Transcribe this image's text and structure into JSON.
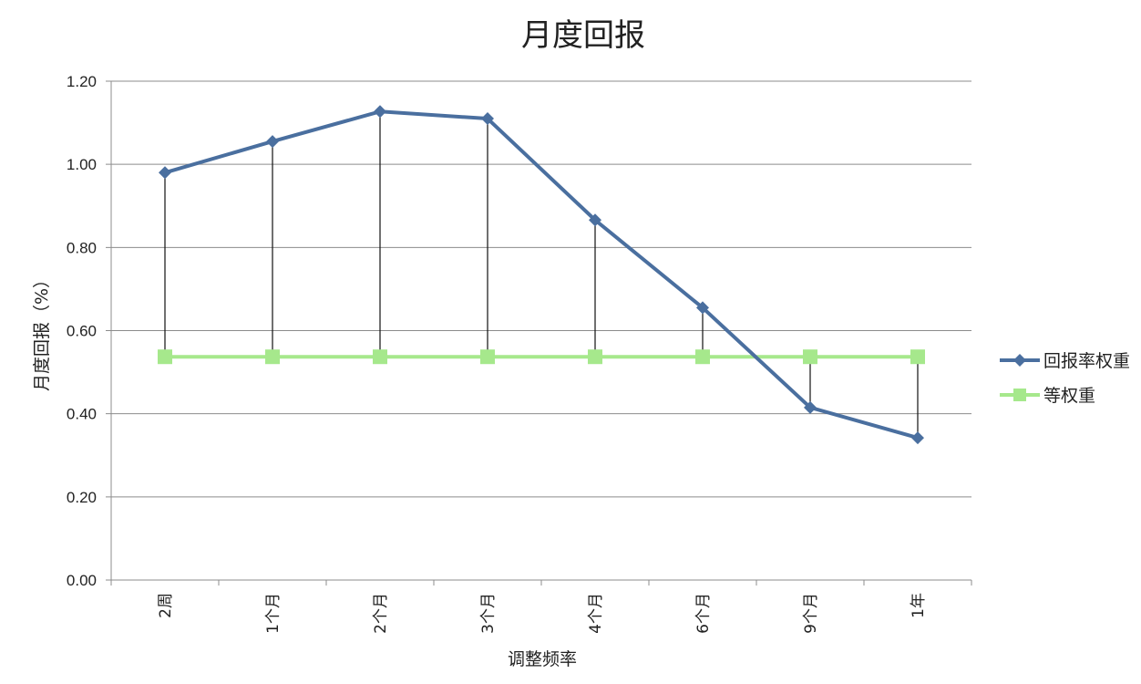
{
  "chart_data": {
    "type": "line",
    "title": "月度回报",
    "xlabel": "调整频率",
    "ylabel": "月度回报（%）",
    "categories": [
      "2周",
      "1个月",
      "2个月",
      "3个月",
      "4个月",
      "6个月",
      "9个月",
      "1年"
    ],
    "ylim": [
      0,
      1.2
    ],
    "yticks": [
      "0.00",
      "0.20",
      "0.40",
      "0.60",
      "0.80",
      "1.00",
      "1.20"
    ],
    "grid": true,
    "legend_position": "right",
    "drop_lines": true,
    "series": [
      {
        "name": "回报率权重",
        "values": [
          0.98,
          1.055,
          1.127,
          1.11,
          0.866,
          0.655,
          0.415,
          0.342
        ],
        "color": "#4a6f9f",
        "marker": "diamond"
      },
      {
        "name": "等权重",
        "values": [
          0.537,
          0.537,
          0.537,
          0.537,
          0.537,
          0.537,
          0.537,
          0.537
        ],
        "color": "#a6e88c",
        "marker": "square"
      }
    ]
  }
}
